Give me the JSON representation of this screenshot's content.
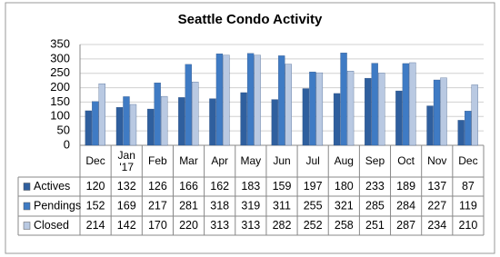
{
  "chart_data": {
    "type": "bar",
    "title": "Seattle Condo Activity",
    "categories": [
      "Dec",
      "Jan '17",
      "Feb",
      "Mar",
      "Apr",
      "May",
      "Jun",
      "Jul",
      "Aug",
      "Sep",
      "Oct",
      "Nov",
      "Dec"
    ],
    "series": [
      {
        "name": "Actives",
        "color": "#2f5f9e",
        "values": [
          120,
          132,
          126,
          166,
          162,
          183,
          159,
          197,
          180,
          233,
          189,
          137,
          87
        ]
      },
      {
        "name": "Pendings",
        "color": "#3f7bc4",
        "values": [
          152,
          169,
          217,
          281,
          318,
          319,
          311,
          255,
          321,
          285,
          284,
          227,
          119
        ]
      },
      {
        "name": "Closed",
        "color": "#b9c9e2",
        "values": [
          214,
          142,
          170,
          220,
          313,
          313,
          282,
          252,
          258,
          251,
          287,
          234,
          210
        ]
      }
    ],
    "ylim": [
      0,
      350
    ],
    "yticks": [
      0,
      50,
      100,
      150,
      200,
      250,
      300,
      350
    ],
    "grid": true
  }
}
